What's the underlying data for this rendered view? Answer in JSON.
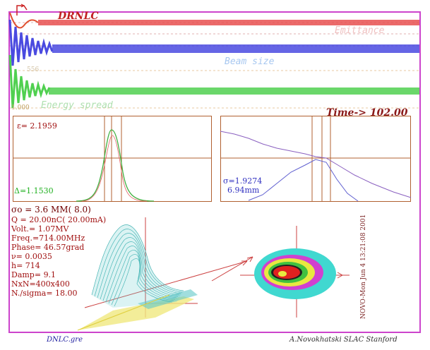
{
  "header": {
    "title": "DRNLC",
    "time_label": "Time-> 102.00"
  },
  "traces": {
    "emittance_label": "Emittance",
    "beam_size_label": "Beam size",
    "energy_spread_label": "Energy spread",
    "top_left_value": "556",
    "lower_left_value": "1.000"
  },
  "left_panel": {
    "epsilon": "ε= 2.1959",
    "delta": "Δ=1.1530"
  },
  "right_panel": {
    "sigma": "σ=1.9274",
    "sigma_mm": "6.94mm"
  },
  "params": {
    "sigma0": "σo = 3.6 MM( 8.0)",
    "charge": "Q = 20.00nC( 20.00mA)",
    "volt": "Volt.= 1.07MV",
    "freq": "Freq.=714.00MHz",
    "phase": "Phase= 46.57grad",
    "nu": "ν= 0.0035",
    "h": "h=  714",
    "damp": "Damp=   9.1",
    "grid": "NxN=400x400",
    "nsigma": "N./sigma= 18.00"
  },
  "vertical_stamp": "NOVO-Mon Jun 4 13:21:08 2001",
  "footer": {
    "filename": "DNLC.gre",
    "credit": "A.Novokhatski  SLAC Stanford"
  },
  "colors": {
    "frame": "#cc44cc",
    "emittance": "#e04040",
    "beam_size": "#5050e0",
    "energy_spread": "#50d050",
    "panel_line": "#b06030"
  }
}
